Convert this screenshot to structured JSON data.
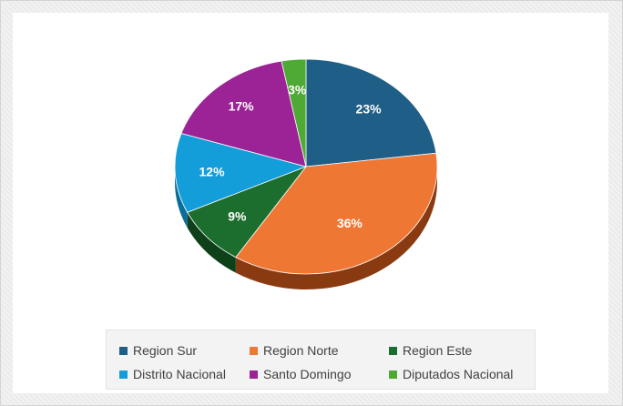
{
  "chart_data": {
    "type": "pie",
    "title": "",
    "categories": [
      "Region Sur",
      "Region Norte",
      "Region Este",
      "Distrito Nacional",
      "Santo Domingo",
      "Diputados Nacional"
    ],
    "values": [
      23,
      36,
      9,
      12,
      17,
      3
    ],
    "labels": [
      "23%",
      "36%",
      "9%",
      "12%",
      "17%",
      "3%"
    ],
    "colors": [
      "#1f5e87",
      "#ef7734",
      "#1c6e2e",
      "#149ed9",
      "#9b2396",
      "#4ea935"
    ],
    "side_colors": [
      "#13405c",
      "#8a3a10",
      "#0e4019",
      "#0a6e99",
      "#631362",
      "#2e6b1f"
    ],
    "legend_position": "bottom",
    "style": "3d-pie"
  }
}
